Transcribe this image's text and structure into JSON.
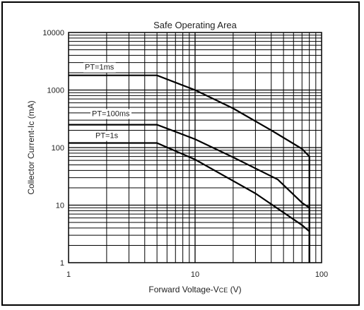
{
  "chart_data": {
    "type": "line",
    "title": "Safe Operating Area",
    "xlabel": "Forward Voltage-V",
    "xlabel_sub": "CE",
    "xlabel_unit": " (V)",
    "ylabel": "Collector Current-Ic (mA)",
    "x_scale": "log",
    "y_scale": "log",
    "xlim": [
      1,
      100
    ],
    "ylim": [
      1,
      10000
    ],
    "x_ticks": [
      {
        "value": 1,
        "label": "1"
      },
      {
        "value": 10,
        "label": "10"
      },
      {
        "value": 100,
        "label": "100"
      }
    ],
    "y_ticks": [
      {
        "value": 1,
        "label": "1"
      },
      {
        "value": 10,
        "label": "10"
      },
      {
        "value": 100,
        "label": "100"
      },
      {
        "value": 1000,
        "label": "1000"
      },
      {
        "value": 10000,
        "label": "10000"
      }
    ],
    "grid": true,
    "series": [
      {
        "label": "PT=1ms",
        "points": [
          [
            1,
            1800
          ],
          [
            5,
            1800
          ],
          [
            10,
            1000
          ],
          [
            20,
            480
          ],
          [
            40,
            200
          ],
          [
            70,
            95
          ],
          [
            80,
            70
          ],
          [
            80,
            1
          ]
        ]
      },
      {
        "label": "PT=100ms",
        "points": [
          [
            1,
            250
          ],
          [
            5,
            250
          ],
          [
            10,
            140
          ],
          [
            20,
            68
          ],
          [
            45,
            28
          ],
          [
            70,
            11
          ],
          [
            80,
            9
          ],
          [
            80,
            1
          ]
        ]
      },
      {
        "label": "PT=1s",
        "points": [
          [
            1,
            120
          ],
          [
            5,
            120
          ],
          [
            10,
            62
          ],
          [
            30,
            16
          ],
          [
            70,
            4.5
          ],
          [
            80,
            3.5
          ],
          [
            80,
            1
          ]
        ]
      }
    ]
  }
}
